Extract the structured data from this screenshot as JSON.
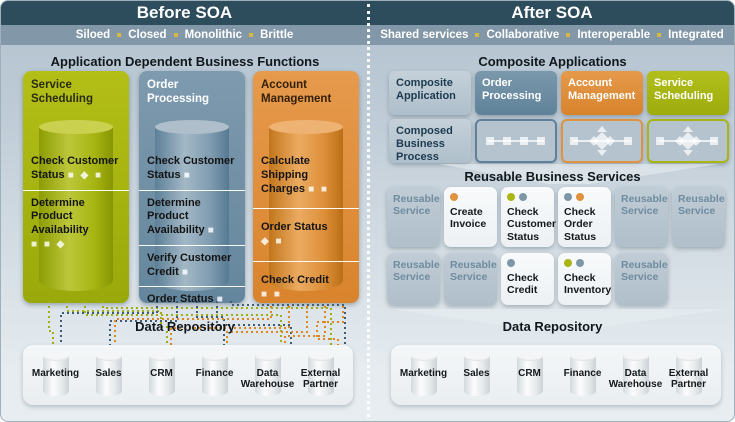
{
  "colors": {
    "header_bg": "#2d4c5c",
    "subtitle_bg": "#8297a7",
    "gold": "#d9b83f",
    "olive": "#a9b512",
    "slate": "#7d97a9",
    "orange": "#e0923e",
    "olive_line": "#9fae10",
    "slate_dark": "#3f5e75",
    "orange_line": "#e0861f"
  },
  "left": {
    "header": "Before SOA",
    "subtitle_words": [
      "Siloed",
      "Closed",
      "Monolithic",
      "Brittle"
    ],
    "section_title": "Application Dependent Business Functions",
    "apps": [
      {
        "name": "Service Scheduling",
        "items": [
          {
            "label": "Check Customer Status",
            "shapes": "■ ◆ ■"
          },
          {
            "label": "Determine Product Availability",
            "shapes": "■ ■ ◆"
          }
        ]
      },
      {
        "name": "Order Processing",
        "items": [
          {
            "label": "Check Customer Status",
            "shapes": "■"
          },
          {
            "label": "Determine Product Availability",
            "shapes": "■"
          },
          {
            "label": "Verify Customer Credit",
            "shapes": "■"
          },
          {
            "label": "Order Status",
            "shapes": "■"
          }
        ]
      },
      {
        "name": "Account Management",
        "items": [
          {
            "label": "Calculate Shipping Charges",
            "shapes": "■ ■"
          },
          {
            "label": "Order Status",
            "shapes": "◆ ■"
          },
          {
            "label": "Check Credit",
            "shapes": "■ ■"
          }
        ]
      }
    ],
    "repository_title": "Data Repository",
    "stores": [
      "Marketing",
      "Sales",
      "CRM",
      "Finance",
      "Data Warehouse",
      "External Partner"
    ]
  },
  "right": {
    "header": "After SOA",
    "subtitle_words": [
      "Shared services",
      "Collaborative",
      "Interoperable",
      "Integrated"
    ],
    "section_title": "Composite Applications",
    "composite_labels": {
      "app": "Composite Application",
      "process": "Composed Business Process"
    },
    "composite_apps": [
      "Order Processing",
      "Account Management",
      "Service Scheduling"
    ],
    "services_title": "Reusable Business Services",
    "services_row1": [
      {
        "label": "Reusable Service",
        "dots": []
      },
      {
        "label": "Create Invoice",
        "dots": [
          "orange"
        ]
      },
      {
        "label": "Check Customer Status",
        "dots": [
          "olive",
          "slate"
        ]
      },
      {
        "label": "Check Order Status",
        "dots": [
          "slate",
          "orange"
        ]
      },
      {
        "label": "Reusable Service",
        "dots": []
      },
      {
        "label": "Reusable Service",
        "dots": []
      }
    ],
    "services_row2": [
      {
        "label": "Reusable Service",
        "dots": []
      },
      {
        "label": "Reusable Service",
        "dots": []
      },
      {
        "label": "Check Credit",
        "dots": [
          "slate"
        ]
      },
      {
        "label": "Check Inventory",
        "dots": [
          "olive",
          "slate"
        ]
      },
      {
        "label": "Reusable Service",
        "dots": []
      }
    ],
    "repository_title": "Data Repository",
    "stores": [
      "Marketing",
      "Sales",
      "CRM",
      "Finance",
      "Data Warehouse",
      "External Partner"
    ]
  }
}
